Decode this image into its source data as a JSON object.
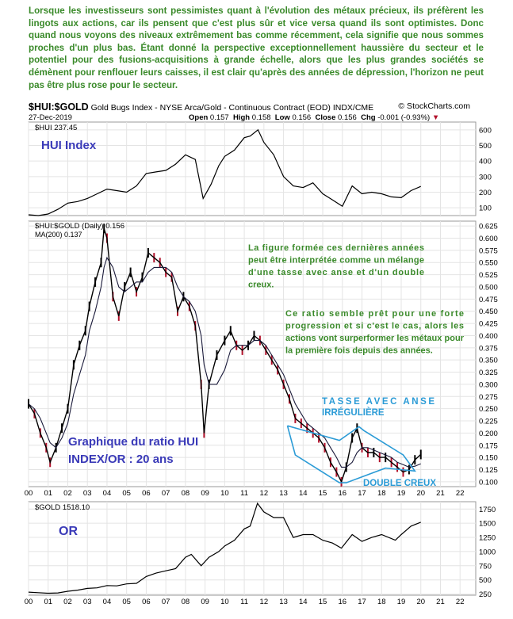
{
  "intro_text": "Lorsque les investisseurs sont pessimistes quant à l'évolution des métaux précieux, ils préfèrent les lingots aux actions, car ils pensent que c'est plus sûr et vice versa quand ils sont optimistes. Donc quand nous voyons des niveaux extrêmement bas comme récemment, cela signifie que nous sommes proches d'un plus bas. Étant donné la perspective exceptionnellement haussière du secteur et le potentiel pour des fusions-acquisitions à grande échelle, alors que les plus grandes sociétés se démènent pour renflouer leurs caisses, il est clair qu'après des années de dépression, l'horizon ne peut pas être plus rose pour le secteur.",
  "header": {
    "symbol": "$HUI:$GOLD",
    "description": "Gold Bugs Index - NYSE Arca/Gold - Continuous Contract (EOD) INDX/CME",
    "brand": "© StockCharts.com",
    "date": "27-Dec-2019",
    "open_label": "Open",
    "open": "0.157",
    "high_label": "High",
    "high": "0.158",
    "low_label": "Low",
    "low": "0.156",
    "close_label": "Close",
    "close": "0.156",
    "chg_label": "Chg",
    "chg": "-0.001 (-0.93%)"
  },
  "colors": {
    "intro_text": "#3a8a2a",
    "annotation_text": "#3a8a2a",
    "overlay_label": "#3a3ab8",
    "pattern_lines": "#2b9bd6",
    "ma_line": "#1a1a3a",
    "candles": "#000000",
    "down_candles": "#b2102a"
  },
  "chart_data": [
    {
      "type": "line",
      "legend": "$HUI 237.45",
      "overlay_label": "HUI Index",
      "x": [
        2000,
        2000.5,
        2001,
        2001.5,
        2002,
        2002.5,
        2003,
        2003.5,
        2004,
        2004.5,
        2005,
        2005.5,
        2006,
        2006.5,
        2007,
        2007.5,
        2008,
        2008.5,
        2008.9,
        2009.3,
        2009.7,
        2010,
        2010.5,
        2011,
        2011.3,
        2011.7,
        2012,
        2012.5,
        2013,
        2013.5,
        2014,
        2014.5,
        2015,
        2015.5,
        2016,
        2016.5,
        2017,
        2017.5,
        2018,
        2018.5,
        2019,
        2019.5,
        2020
      ],
      "y": [
        55,
        50,
        60,
        90,
        130,
        140,
        160,
        190,
        220,
        210,
        200,
        240,
        320,
        330,
        340,
        380,
        440,
        410,
        160,
        250,
        370,
        430,
        470,
        550,
        560,
        600,
        520,
        440,
        300,
        240,
        230,
        260,
        190,
        150,
        110,
        240,
        190,
        200,
        190,
        170,
        165,
        210,
        237
      ],
      "yticks": [
        100,
        200,
        300,
        400,
        500,
        600
      ],
      "ylim": [
        50,
        650
      ]
    },
    {
      "type": "line",
      "legend": "$HUI:$GOLD (Daily) 0.156",
      "legend_ma": "MA(200) 0.137",
      "overlay_label_line1": "Graphique du ratio HUI",
      "overlay_label_line2": "INDEX/OR : 20 ans",
      "annotation_1": "La figure formée ces dernières années peut être interprétée comme un mélange d'une tasse avec anse et d'un double creux.",
      "annotation_2": "Ce ratio semble prêt pour une forte progression et si c'est le cas, alors les actions vont surperformer les métaux pour la première fois depuis des années.",
      "pattern_label_1_line1": "TASSE AVEC ANSE",
      "pattern_label_1_line2": "IRRÉGULIÈRE",
      "pattern_label_2": "DOUBLE CREUX",
      "x": [
        2000,
        2000.3,
        2000.6,
        2000.9,
        2001.1,
        2001.4,
        2001.7,
        2002,
        2002.3,
        2002.6,
        2002.9,
        2003.1,
        2003.4,
        2003.7,
        2003.85,
        2004,
        2004.3,
        2004.6,
        2004.9,
        2005.2,
        2005.5,
        2005.8,
        2006.1,
        2006.4,
        2006.7,
        2007,
        2007.3,
        2007.6,
        2007.9,
        2008.2,
        2008.5,
        2008.8,
        2008.95,
        2009.2,
        2009.6,
        2010,
        2010.3,
        2010.6,
        2010.9,
        2011.2,
        2011.5,
        2011.8,
        2012.1,
        2012.4,
        2012.7,
        2013,
        2013.3,
        2013.6,
        2013.9,
        2014.2,
        2014.5,
        2014.8,
        2015.1,
        2015.4,
        2015.7,
        2015.95,
        2016.2,
        2016.5,
        2016.75,
        2017,
        2017.3,
        2017.6,
        2017.9,
        2018.2,
        2018.5,
        2018.8,
        2019.1,
        2019.4,
        2019.7,
        2020
      ],
      "y": [
        0.26,
        0.24,
        0.2,
        0.17,
        0.14,
        0.17,
        0.21,
        0.25,
        0.34,
        0.38,
        0.41,
        0.46,
        0.51,
        0.55,
        0.62,
        0.6,
        0.48,
        0.44,
        0.5,
        0.53,
        0.49,
        0.52,
        0.57,
        0.56,
        0.55,
        0.53,
        0.52,
        0.45,
        0.48,
        0.46,
        0.42,
        0.3,
        0.2,
        0.3,
        0.36,
        0.39,
        0.41,
        0.38,
        0.37,
        0.38,
        0.4,
        0.39,
        0.37,
        0.35,
        0.33,
        0.3,
        0.27,
        0.23,
        0.22,
        0.21,
        0.2,
        0.19,
        0.17,
        0.14,
        0.12,
        0.1,
        0.13,
        0.19,
        0.21,
        0.17,
        0.16,
        0.16,
        0.15,
        0.15,
        0.14,
        0.13,
        0.12,
        0.125,
        0.145,
        0.156
      ],
      "ma": [
        0.26,
        0.25,
        0.23,
        0.2,
        0.18,
        0.17,
        0.19,
        0.22,
        0.28,
        0.32,
        0.36,
        0.41,
        0.45,
        0.5,
        0.54,
        0.56,
        0.54,
        0.5,
        0.49,
        0.5,
        0.51,
        0.51,
        0.53,
        0.54,
        0.54,
        0.54,
        0.53,
        0.5,
        0.48,
        0.47,
        0.45,
        0.4,
        0.34,
        0.3,
        0.3,
        0.33,
        0.37,
        0.38,
        0.38,
        0.38,
        0.39,
        0.39,
        0.38,
        0.36,
        0.34,
        0.32,
        0.29,
        0.26,
        0.24,
        0.22,
        0.21,
        0.2,
        0.19,
        0.17,
        0.15,
        0.13,
        0.13,
        0.14,
        0.16,
        0.17,
        0.17,
        0.165,
        0.16,
        0.155,
        0.15,
        0.14,
        0.135,
        0.13,
        0.132,
        0.137
      ],
      "yticks": [
        0.1,
        0.125,
        0.15,
        0.175,
        0.2,
        0.225,
        0.25,
        0.275,
        0.3,
        0.325,
        0.35,
        0.375,
        0.4,
        0.425,
        0.45,
        0.475,
        0.5,
        0.525,
        0.55,
        0.575,
        0.6,
        0.625
      ],
      "ytick_labels": [
        "0.100",
        "0.125",
        "0.150",
        "0.175",
        "0.200",
        "0.225",
        "0.250",
        "0.275",
        "0.300",
        "0.325",
        "0.350",
        "0.375",
        "0.400",
        "0.425",
        "0.450",
        "0.475",
        "0.500",
        "0.525",
        "0.550",
        "0.575",
        "0.600",
        "0.625"
      ],
      "ylim": [
        0.09,
        0.635
      ],
      "xticks": [
        2000,
        2001,
        2002,
        2003,
        2004,
        2005,
        2006,
        2007,
        2008,
        2009,
        2010,
        2011,
        2012,
        2013,
        2014,
        2015,
        2016,
        2017,
        2018,
        2019,
        2020,
        2021,
        2022
      ],
      "xtick_labels": [
        "00",
        "01",
        "02",
        "03",
        "04",
        "05",
        "06",
        "07",
        "08",
        "09",
        "10",
        "11",
        "12",
        "13",
        "14",
        "15",
        "16",
        "17",
        "18",
        "19",
        "20",
        "21",
        "22"
      ]
    },
    {
      "type": "line",
      "legend": "$GOLD 1518.10",
      "overlay_label": "OR",
      "x": [
        2000,
        2000.5,
        2001,
        2001.5,
        2002,
        2002.5,
        2003,
        2003.5,
        2004,
        2004.5,
        2005,
        2005.5,
        2006,
        2006.5,
        2007,
        2007.5,
        2008,
        2008.3,
        2008.8,
        2009.2,
        2009.7,
        2010,
        2010.5,
        2011,
        2011.3,
        2011.67,
        2012,
        2012.5,
        2013,
        2013.5,
        2014,
        2014.5,
        2015,
        2015.5,
        2015.95,
        2016.5,
        2017,
        2017.5,
        2018,
        2018.7,
        2019,
        2019.5,
        2020
      ],
      "y": [
        285,
        275,
        265,
        270,
        300,
        320,
        350,
        360,
        400,
        395,
        430,
        440,
        560,
        620,
        660,
        700,
        900,
        950,
        750,
        900,
        1000,
        1100,
        1200,
        1400,
        1450,
        1850,
        1700,
        1600,
        1600,
        1250,
        1300,
        1300,
        1200,
        1150,
        1060,
        1300,
        1180,
        1250,
        1300,
        1200,
        1300,
        1450,
        1518
      ],
      "yticks": [
        250,
        500,
        750,
        1000,
        1250,
        1500,
        1750
      ],
      "ylim": [
        230,
        1880
      ],
      "xticks": [
        2000,
        2001,
        2002,
        2003,
        2004,
        2005,
        2006,
        2007,
        2008,
        2009,
        2010,
        2011,
        2012,
        2013,
        2014,
        2015,
        2016,
        2017,
        2018,
        2019,
        2020,
        2021,
        2022
      ],
      "xtick_labels": [
        "00",
        "01",
        "02",
        "03",
        "04",
        "05",
        "06",
        "07",
        "08",
        "09",
        "10",
        "11",
        "12",
        "13",
        "14",
        "15",
        "16",
        "17",
        "18",
        "19",
        "20",
        "21",
        "22"
      ]
    }
  ]
}
